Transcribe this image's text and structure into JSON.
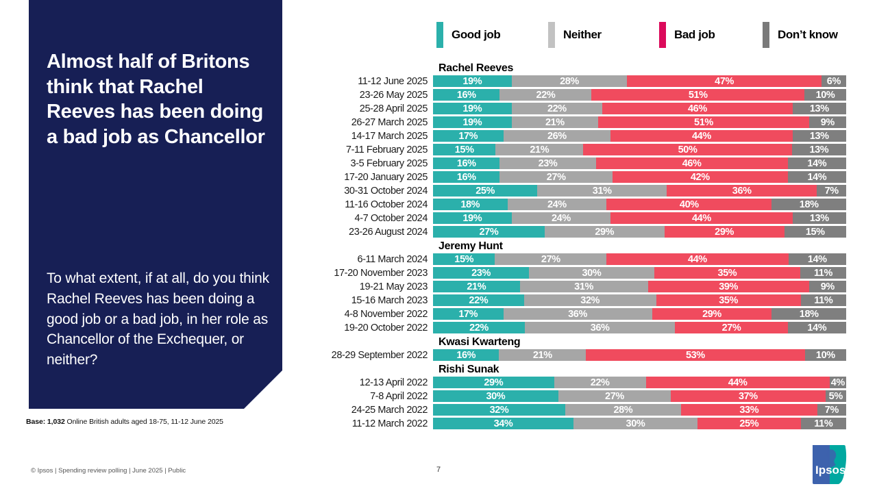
{
  "slide": {
    "title": "Almost half of Britons think that Rachel Reeves has been doing a bad job as Chancellor",
    "question": "To what extent, if at all, do you think Rachel Reeves has been doing a good job or a bad job, in her role as Chancellor of the Exchequer, or neither?",
    "base_bold": "Base: 1,032",
    "base_rest": " Online British adults aged 18-75, 11-12 June 2025",
    "footer": "© Ipsos | Spending review polling | June 2025 | Public",
    "page_number": "7",
    "logo_text": "Ipsos"
  },
  "colors": {
    "panel_navy": "#171F55",
    "bar_colors": [
      "#2BB0AB",
      "#A6A6A6",
      "#F04B5E",
      "#7F7F7F"
    ],
    "legend_colors": [
      "#2BB0AB",
      "#C2C2C2",
      "#DB0A5B",
      "#7A7A7A"
    ],
    "logo_blue": "#3D62AD",
    "logo_teal": "#00A8A0"
  },
  "chart_data": {
    "type": "bar",
    "stacked": true,
    "orientation": "horizontal",
    "value_suffix": "%",
    "legend": [
      "Good job",
      "Neither",
      "Bad job",
      "Don’t know"
    ],
    "series_names": [
      "Good job",
      "Neither",
      "Bad job",
      "Don’t know"
    ],
    "groups": [
      {
        "name": "Rachel Reeves",
        "rows": [
          {
            "label": "11-12 June 2025",
            "values": [
              19,
              28,
              47,
              6
            ]
          },
          {
            "label": "23-26 May 2025",
            "values": [
              16,
              22,
              51,
              10
            ]
          },
          {
            "label": "25-28 April 2025",
            "values": [
              19,
              22,
              46,
              13
            ]
          },
          {
            "label": "26-27 March 2025",
            "values": [
              19,
              21,
              51,
              9
            ]
          },
          {
            "label": "14-17 March 2025",
            "values": [
              17,
              26,
              44,
              13
            ]
          },
          {
            "label": "7-11 February 2025",
            "values": [
              15,
              21,
              50,
              13
            ]
          },
          {
            "label": "3-5 February 2025",
            "values": [
              16,
              23,
              46,
              14
            ]
          },
          {
            "label": "17-20 January 2025",
            "values": [
              16,
              27,
              42,
              14
            ]
          },
          {
            "label": "30-31 October 2024",
            "values": [
              25,
              31,
              36,
              7
            ]
          },
          {
            "label": "11-16 October 2024",
            "values": [
              18,
              24,
              40,
              18
            ]
          },
          {
            "label": "4-7 October 2024",
            "values": [
              19,
              24,
              44,
              13
            ]
          },
          {
            "label": "23-26 August 2024",
            "values": [
              27,
              29,
              29,
              15
            ]
          }
        ]
      },
      {
        "name": "Jeremy Hunt",
        "rows": [
          {
            "label": "6-11 March 2024",
            "values": [
              15,
              27,
              44,
              14
            ]
          },
          {
            "label": "17-20 November 2023",
            "values": [
              23,
              30,
              35,
              11
            ]
          },
          {
            "label": "19-21 May 2023",
            "values": [
              21,
              31,
              39,
              9
            ]
          },
          {
            "label": "15-16 March 2023",
            "values": [
              22,
              32,
              35,
              11
            ]
          },
          {
            "label": "4-8 November 2022",
            "values": [
              17,
              36,
              29,
              18
            ]
          },
          {
            "label": "19-20 October 2022",
            "values": [
              22,
              36,
              27,
              14
            ]
          }
        ]
      },
      {
        "name": "Kwasi Kwarteng",
        "rows": [
          {
            "label": "28-29 September 2022",
            "values": [
              16,
              21,
              53,
              10
            ]
          }
        ]
      },
      {
        "name": "Rishi Sunak",
        "rows": [
          {
            "label": "12-13 April 2022",
            "values": [
              29,
              22,
              44,
              4
            ]
          },
          {
            "label": "7-8 April 2022",
            "values": [
              30,
              27,
              37,
              5
            ]
          },
          {
            "label": "24-25 March 2022",
            "values": [
              32,
              28,
              33,
              7
            ]
          },
          {
            "label": "11-12 March 2022",
            "values": [
              34,
              30,
              25,
              11
            ]
          }
        ]
      }
    ]
  }
}
